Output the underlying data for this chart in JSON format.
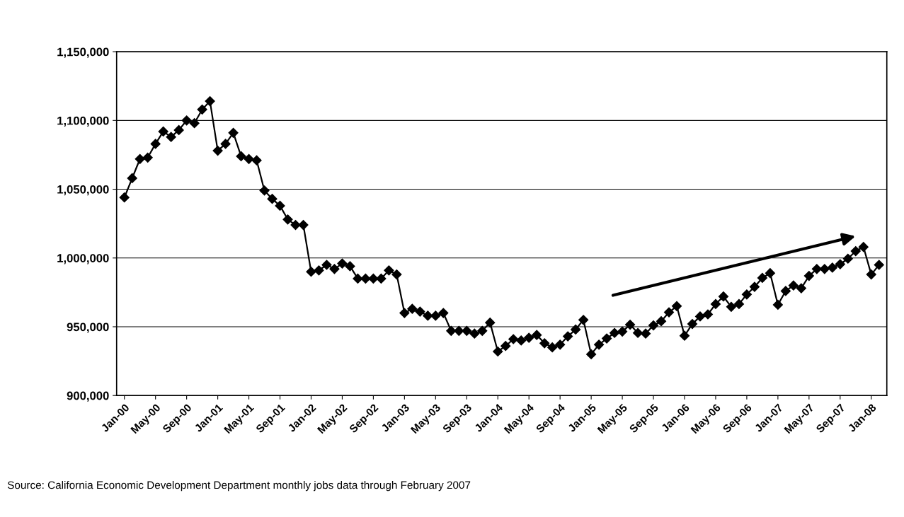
{
  "chart_data": {
    "type": "line",
    "categories": [
      "Jan-00",
      null,
      null,
      null,
      "May-00",
      null,
      null,
      null,
      "Sep-00",
      null,
      null,
      null,
      "Jan-01",
      null,
      null,
      null,
      "May-01",
      null,
      null,
      null,
      "Sep-01",
      null,
      null,
      null,
      "Jan-02",
      null,
      null,
      null,
      "May-02",
      null,
      null,
      null,
      "Sep-02",
      null,
      null,
      null,
      "Jan-03",
      null,
      null,
      null,
      "May-03",
      null,
      null,
      null,
      "Sep-03",
      null,
      null,
      null,
      "Jan-04",
      null,
      null,
      null,
      "May-04",
      null,
      null,
      null,
      "Sep-04",
      null,
      null,
      null,
      "Jan-05",
      null,
      null,
      null,
      "May-05",
      null,
      null,
      null,
      "Sep-05",
      null,
      null,
      null,
      "Jan-06",
      null,
      null,
      null,
      "May-06",
      null,
      null,
      null,
      "Sep-06",
      null,
      null,
      null,
      "Jan-07",
      null,
      null,
      null,
      "May-07",
      null,
      null,
      null,
      "Sep-07",
      null,
      null,
      null,
      "Jan-08",
      null
    ],
    "series": [
      {
        "color": "#000000",
        "values": [
          1044000,
          1058000,
          1072000,
          1073000,
          1083000,
          1092000,
          1088000,
          1093000,
          1100000,
          1098000,
          1108000,
          1114000,
          1078000,
          1083000,
          1091000,
          1074000,
          1072000,
          1071000,
          1049000,
          1043000,
          1038000,
          1028000,
          1024000,
          1024000,
          990000,
          991000,
          995000,
          992000,
          996000,
          994000,
          985000,
          985000,
          985000,
          985000,
          991000,
          988000,
          960000,
          963000,
          961000,
          958000,
          958000,
          960000,
          947000,
          947000,
          947000,
          945000,
          947000,
          953000,
          932000,
          936000,
          941000,
          940000,
          942000,
          944000,
          938000,
          935000,
          937000,
          943000,
          948000,
          955000,
          930000,
          937000,
          941500,
          945500,
          946500,
          951500,
          945500,
          945000,
          951000,
          954000,
          960500,
          965000,
          943500,
          952000,
          957500,
          959000,
          966500,
          972000,
          964500,
          966500,
          973500,
          979000,
          985500,
          989000,
          966000,
          976000,
          980000,
          978000,
          987000,
          992000,
          992000,
          993000,
          995500,
          999500,
          1005000,
          1008000,
          988000,
          995000
        ]
      }
    ],
    "ylim": [
      900000,
      1150000
    ],
    "yticks": [
      {
        "value": 900000,
        "label": "900,000"
      },
      {
        "value": 950000,
        "label": "950,000"
      },
      {
        "value": 1000000,
        "label": "1,000,000"
      },
      {
        "value": 1050000,
        "label": "1,050,000"
      },
      {
        "value": 1100000,
        "label": "1,100,000"
      },
      {
        "value": 1150000,
        "label": "1,150,000"
      }
    ],
    "grid": "y",
    "marker": "diamond",
    "line_style": "solid",
    "annotations": [
      "Source: California Economic Development Department monthly jobs data through February 2007"
    ]
  }
}
